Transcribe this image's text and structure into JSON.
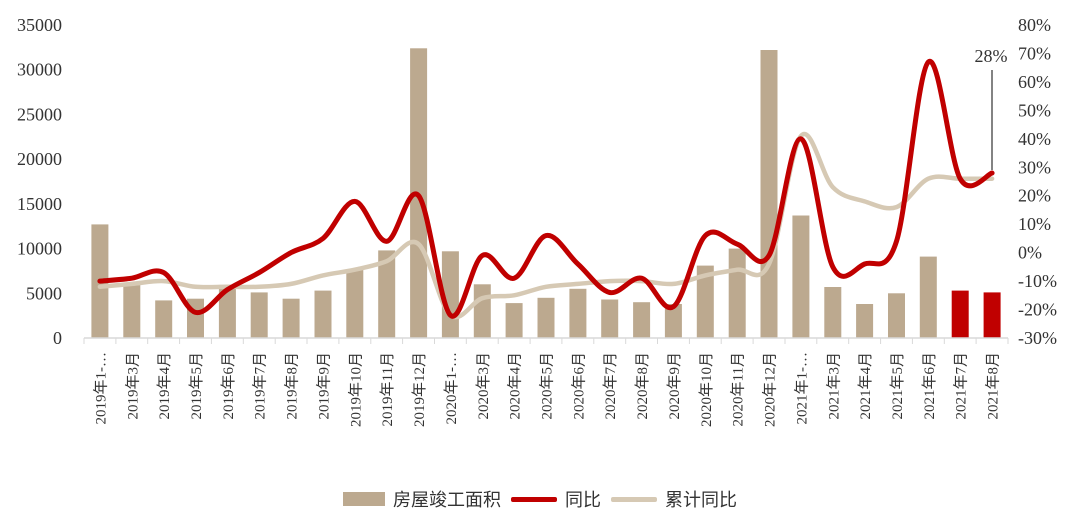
{
  "chart_data": {
    "type": "combo",
    "title": "",
    "categories": [
      "2019年1-…",
      "2019年3月",
      "2019年4月",
      "2019年5月",
      "2019年6月",
      "2019年7月",
      "2019年8月",
      "2019年9月",
      "2019年10月",
      "2019年11月",
      "2019年12月",
      "2020年1-…",
      "2020年3月",
      "2020年4月",
      "2020年5月",
      "2020年6月",
      "2020年7月",
      "2020年8月",
      "2020年9月",
      "2020年10月",
      "2020年11月",
      "2020年12月",
      "2021年1-…",
      "2021年3月",
      "2021年4月",
      "2021年5月",
      "2021年6月",
      "2021年7月",
      "2021年8月"
    ],
    "series": [
      {
        "name": "房屋竣工面积",
        "type": "bar",
        "axis": "left",
        "color": "#BCA98F",
        "highlight_color": "#C00000",
        "highlight_indices": [
          27,
          28
        ],
        "values": [
          12700,
          6000,
          4200,
          4400,
          5700,
          5100,
          4400,
          5300,
          7600,
          9800,
          32400,
          9700,
          6000,
          3900,
          4500,
          5500,
          4300,
          4000,
          3800,
          8100,
          10000,
          32200,
          13700,
          5700,
          3800,
          5000,
          9100,
          5300,
          5100
        ]
      },
      {
        "name": "同比",
        "type": "line",
        "axis": "right",
        "color": "#C00000",
        "smooth": true,
        "values_pct": [
          -10,
          -9,
          -7,
          -21,
          -13,
          -7,
          0,
          5,
          18,
          4,
          20,
          -22,
          -1,
          -9,
          6,
          -4,
          -14,
          -9,
          -19,
          6,
          3,
          -1,
          40,
          -5,
          -4,
          4,
          67,
          26,
          28
        ]
      },
      {
        "name": "累计同比",
        "type": "line",
        "axis": "right",
        "color": "#D6C9B4",
        "smooth": true,
        "values_pct": [
          -12,
          -11,
          -10,
          -12,
          -12,
          -12,
          -11,
          -8,
          -6,
          -3,
          3,
          -22,
          -16,
          -15,
          -12,
          -11,
          -10,
          -10,
          -11,
          -8,
          -6,
          -4,
          41,
          23,
          18,
          16,
          26,
          26,
          26
        ]
      }
    ],
    "left_axis": {
      "min": 0,
      "max": 35000,
      "ticks": [
        "0",
        "5000",
        "10000",
        "15000",
        "20000",
        "25000",
        "30000",
        "35000"
      ]
    },
    "right_axis": {
      "min": -30,
      "max": 80,
      "ticks": [
        "80%",
        "70%",
        "60%",
        "50%",
        "40%",
        "30%",
        "20%",
        "10%",
        "0%",
        "-10%",
        "-20%",
        "-30%"
      ]
    },
    "annotation": {
      "label": "28%",
      "series": "同比",
      "category": "2021年8月",
      "value_pct": 28
    },
    "legend_position": "bottom",
    "grid": false
  },
  "colors": {
    "bar": "#BCA98F",
    "bar_highlight": "#C00000",
    "yoy_line": "#C00000",
    "cum_line": "#D6C9B4",
    "axis": "#D9D9D9",
    "text": "#333333",
    "annotation_line": "#404040"
  }
}
